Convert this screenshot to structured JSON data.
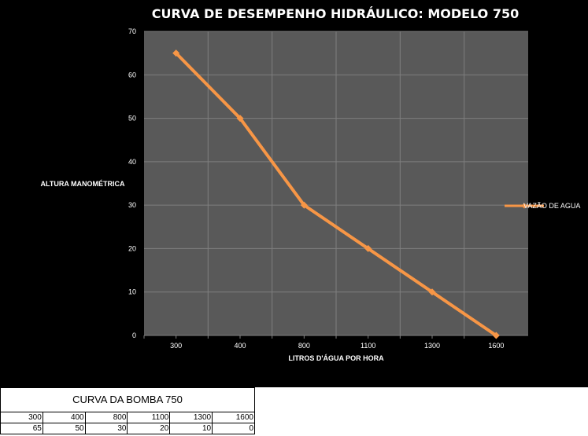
{
  "chart_data": {
    "type": "line",
    "title": "CURVA DE DESEMPENHO HIDRÁULICO: MODELO 750",
    "xlabel": "LITROS D'ÁGUA POR HORA",
    "ylabel": "ALTURA MANOMÉTRICA",
    "categories": [
      "300",
      "400",
      "800",
      "1100",
      "1300",
      "1600"
    ],
    "series": [
      {
        "name": "VAZÃO DE AGUA",
        "values": [
          65,
          50,
          30,
          20,
          10,
          0
        ]
      }
    ],
    "ylim": [
      0,
      70
    ],
    "yticks": [
      0,
      10,
      20,
      30,
      40,
      50,
      60,
      70
    ],
    "grid": true,
    "legend": "right",
    "colors": {
      "background": "#000000",
      "plot": "#595959",
      "grid": "#7f7f7f",
      "line": "#f79646"
    }
  },
  "table": {
    "title": "CURVA DA BOMBA 750",
    "rows": [
      [
        "300",
        "400",
        "800",
        "1100",
        "1300",
        "1600"
      ],
      [
        "65",
        "50",
        "30",
        "20",
        "10",
        "0"
      ]
    ]
  }
}
